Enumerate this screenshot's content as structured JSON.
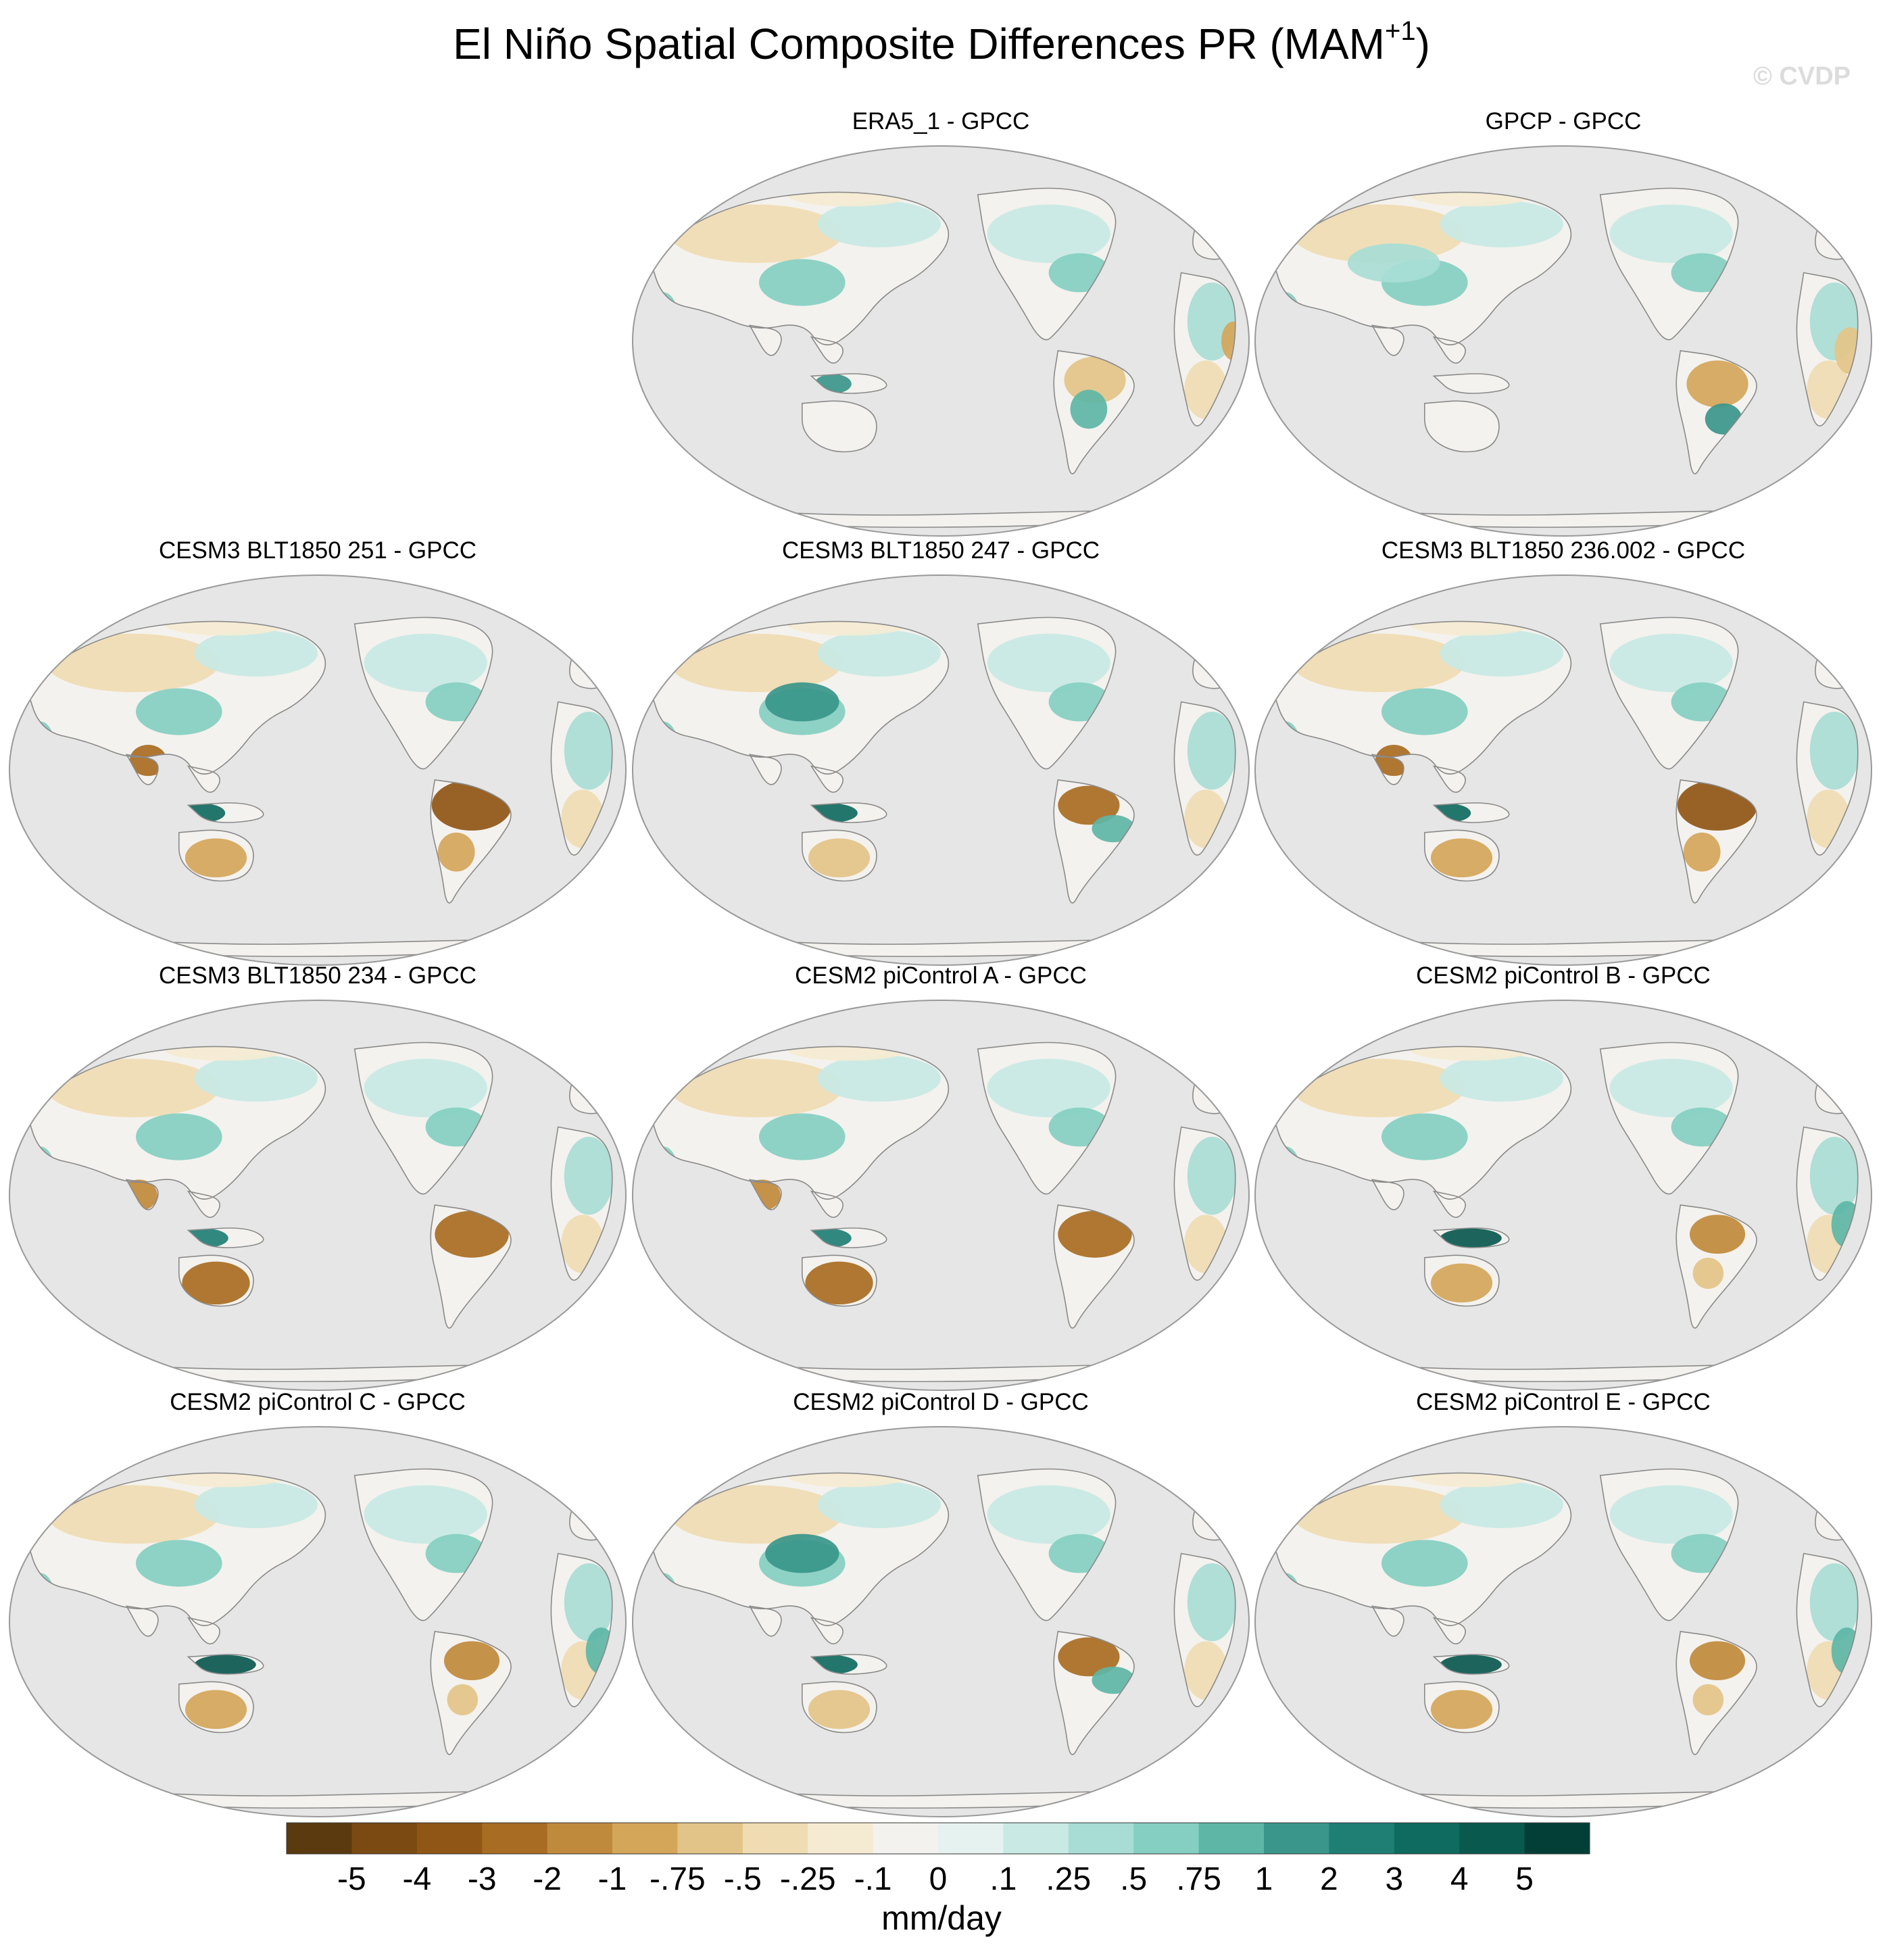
{
  "figure": {
    "title_main": "El Niño Spatial Composite Differences PR (MAM",
    "title_sup": "+1",
    "title_tail": ")",
    "watermark": "© CVDP"
  },
  "colors": {
    "ocean": "#e6e6e6",
    "coast": "#8a8a8a",
    "frame": "#9a9a9a"
  },
  "panels": [
    {
      "title": "ERA5_1 - GPCC",
      "pattern": "obs_mixed"
    },
    {
      "title": "GPCP - GPCC",
      "pattern": "obs_wet_europe"
    },
    {
      "title": "CESM3 BLT1850 251 - GPCC",
      "pattern": "dry_amazon_strong"
    },
    {
      "title": "CESM3 BLT1850 247 - GPCC",
      "pattern": "dry_amazon_wet_east"
    },
    {
      "title": "CESM3 BLT1850 236.002 - GPCC",
      "pattern": "dry_amazon_strong"
    },
    {
      "title": "CESM3 BLT1850 234 - GPCC",
      "pattern": "dry_amazon_dry_aus"
    },
    {
      "title": "CESM2 piControl A - GPCC",
      "pattern": "dry_amazon_dry_aus"
    },
    {
      "title": "CESM2 piControl B - GPCC",
      "pattern": "wet_maritime"
    },
    {
      "title": "CESM2 piControl C - GPCC",
      "pattern": "wet_maritime"
    },
    {
      "title": "CESM2 piControl D - GPCC",
      "pattern": "dry_amazon_wet_east"
    },
    {
      "title": "CESM2 piControl E - GPCC",
      "pattern": "wet_maritime"
    }
  ],
  "colorbar": {
    "units": "mm/day",
    "colors": [
      "#5b3a0f",
      "#7a4a12",
      "#8f5616",
      "#a86c22",
      "#c08a3c",
      "#d4a65a",
      "#e3c488",
      "#efdcb3",
      "#f5ebd3",
      "#f4f2ee",
      "#e5f2f0",
      "#c8e9e4",
      "#a8ddd5",
      "#84cfc1",
      "#5db6a6",
      "#3a968a",
      "#1f7f74",
      "#0f6b5f",
      "#0a594f",
      "#043f37"
    ],
    "labels": [
      "-5",
      "-4",
      "-3",
      "-2",
      "-1",
      "-.75",
      "-.5",
      "-.25",
      "-.1",
      "0",
      ".1",
      ".25",
      ".5",
      ".75",
      "1",
      "2",
      "3",
      "4",
      "5"
    ]
  }
}
